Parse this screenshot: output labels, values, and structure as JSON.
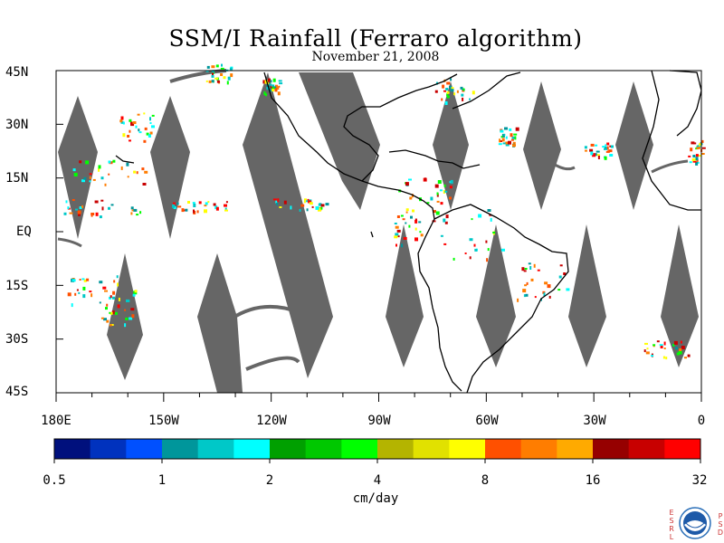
{
  "title": "SSM/I Rainfall (Ferraro algorithm)",
  "date": "November 21, 2008",
  "lat_labels": [
    "45N",
    "30N",
    "15N",
    "EQ",
    "15S",
    "30S",
    "45S"
  ],
  "lon_labels": [
    "180E",
    "150W",
    "120W",
    "90W",
    "60W",
    "30W",
    "0"
  ],
  "colorbar": {
    "tick_labels": [
      "0.5",
      "1",
      "2",
      "4",
      "8",
      "16",
      "32"
    ],
    "units": "cm/day",
    "colors": [
      "#00107d",
      "#0032be",
      "#0050ff",
      "#00969b",
      "#00c8c8",
      "#00ffff",
      "#00a000",
      "#00c800",
      "#00ff00",
      "#b4b400",
      "#e1e100",
      "#ffff00",
      "#ff5000",
      "#ff7d00",
      "#ffaa00",
      "#960000",
      "#c80000",
      "#ff0000"
    ]
  },
  "no_data_color": "#666666",
  "logo": {
    "left_letters": "ESRL",
    "right_letters": "PSD",
    "name": "noaa-logo"
  }
}
